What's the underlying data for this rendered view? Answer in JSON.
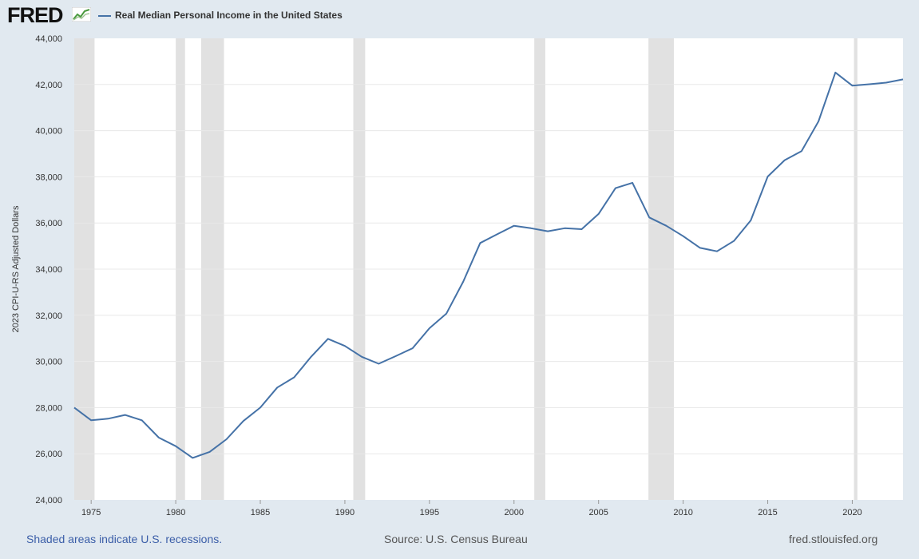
{
  "brand": {
    "name": "FRED",
    "icon": "fred-chart-icon"
  },
  "footer": {
    "recessions_note": "Shaded areas indicate U.S. recessions.",
    "source": "Source: U.S. Census Bureau",
    "site": "fred.stlouisfed.org"
  },
  "colors": {
    "line": "#4572a7",
    "recession": "#e1e1e1",
    "grid": "#e8e8e8",
    "page": "#e1e9f0"
  },
  "chart_data": {
    "type": "line",
    "title": "Real Median Personal Income in the United States",
    "xlabel": "",
    "ylabel": "2023 CPI-U-RS Adjusted Dollars",
    "xlim": [
      1974,
      2023
    ],
    "ylim": [
      24000,
      44000
    ],
    "yticks": [
      24000,
      26000,
      28000,
      30000,
      32000,
      34000,
      36000,
      38000,
      40000,
      42000,
      44000
    ],
    "ytick_labels": [
      "24,000",
      "26,000",
      "28,000",
      "30,000",
      "32,000",
      "34,000",
      "36,000",
      "38,000",
      "40,000",
      "42,000",
      "44,000"
    ],
    "xticks": [
      1975,
      1980,
      1985,
      1990,
      1995,
      2000,
      2005,
      2010,
      2015,
      2020
    ],
    "xtick_labels": [
      "1975",
      "1980",
      "1985",
      "1990",
      "1995",
      "2000",
      "2005",
      "2010",
      "2015",
      "2020"
    ],
    "grid": true,
    "recessions": [
      [
        1974.0,
        1975.2
      ],
      [
        1980.0,
        1980.55
      ],
      [
        1981.5,
        1982.85
      ],
      [
        1990.5,
        1991.2
      ],
      [
        2001.2,
        2001.85
      ],
      [
        2007.95,
        2009.45
      ],
      [
        2020.1,
        2020.3
      ]
    ],
    "series": [
      {
        "name": "Real Median Personal Income in the United States",
        "x": [
          1974,
          1975,
          1976,
          1977,
          1978,
          1979,
          1980,
          1981,
          1982,
          1983,
          1984,
          1985,
          1986,
          1987,
          1988,
          1989,
          1990,
          1991,
          1992,
          1993,
          1994,
          1995,
          1996,
          1997,
          1998,
          1999,
          2000,
          2001,
          2002,
          2003,
          2004,
          2005,
          2006,
          2007,
          2008,
          2009,
          2010,
          2011,
          2012,
          2013,
          2014,
          2015,
          2016,
          2017,
          2018,
          2019,
          2020,
          2021,
          2022,
          2023
        ],
        "values": [
          28000,
          27450,
          27520,
          27680,
          27450,
          26700,
          26330,
          25820,
          26080,
          26630,
          27420,
          28000,
          28870,
          29310,
          30200,
          30980,
          30670,
          30200,
          29900,
          30230,
          30570,
          31440,
          32070,
          33460,
          35130,
          35510,
          35880,
          35770,
          35640,
          35770,
          35730,
          36390,
          37510,
          37740,
          36240,
          35880,
          35430,
          34920,
          34770,
          35220,
          36110,
          38010,
          38720,
          39110,
          40400,
          42520,
          41950,
          42010,
          42080,
          42220
        ]
      }
    ]
  }
}
